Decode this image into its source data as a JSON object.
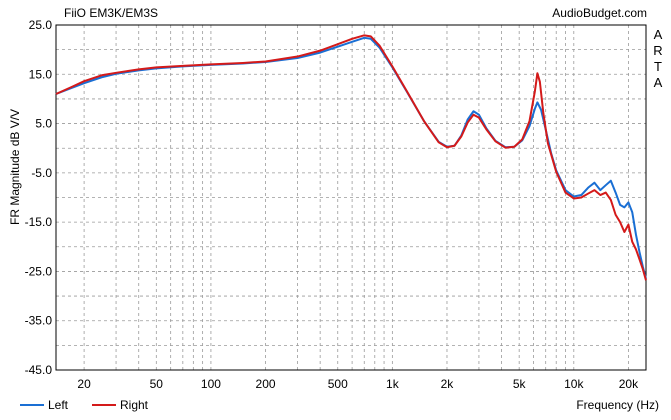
{
  "header": {
    "title": "FiiO EM3K/EM3S",
    "site": "AudioBudget.com"
  },
  "side_text": [
    "A",
    "R",
    "T",
    "A"
  ],
  "colors": {
    "left": "#1a6fd4",
    "right": "#d41a1a",
    "grid": "#9a9a9a",
    "frame": "#000000"
  },
  "chart_data": {
    "type": "line",
    "title": "FiiO EM3K/EM3S",
    "xlabel": "Frequency (Hz)",
    "ylabel": "FR Magnitude dB V/V",
    "xscale": "log",
    "xlim": [
      14,
      25000
    ],
    "ylim": [
      -45,
      25
    ],
    "grid": true,
    "legend_position": "bottom-left",
    "x_ticks": [
      {
        "value": 20,
        "label": "20"
      },
      {
        "value": 50,
        "label": "50"
      },
      {
        "value": 100,
        "label": "100"
      },
      {
        "value": 200,
        "label": "200"
      },
      {
        "value": 500,
        "label": "500"
      },
      {
        "value": 1000,
        "label": "1k"
      },
      {
        "value": 2000,
        "label": "2k"
      },
      {
        "value": 5000,
        "label": "5k"
      },
      {
        "value": 10000,
        "label": "10k"
      },
      {
        "value": 20000,
        "label": "20k"
      }
    ],
    "y_ticks": [
      {
        "value": 25,
        "label": "25.0"
      },
      {
        "value": 15,
        "label": "15.0"
      },
      {
        "value": 5,
        "label": "5.0"
      },
      {
        "value": -5,
        "label": "-5.0"
      },
      {
        "value": -15,
        "label": "-15.0"
      },
      {
        "value": -25,
        "label": "-25.0"
      },
      {
        "value": -35,
        "label": "-35.0"
      },
      {
        "value": -45,
        "label": "-45.0"
      }
    ],
    "series": [
      {
        "name": "Left",
        "color": "#1a6fd4",
        "points": [
          [
            14,
            11.0
          ],
          [
            17,
            12.2
          ],
          [
            20,
            13.2
          ],
          [
            25,
            14.4
          ],
          [
            30,
            15.1
          ],
          [
            40,
            15.8
          ],
          [
            50,
            16.2
          ],
          [
            70,
            16.6
          ],
          [
            100,
            16.9
          ],
          [
            150,
            17.2
          ],
          [
            200,
            17.5
          ],
          [
            300,
            18.3
          ],
          [
            400,
            19.4
          ],
          [
            500,
            20.6
          ],
          [
            600,
            21.6
          ],
          [
            700,
            22.4
          ],
          [
            760,
            22.2
          ],
          [
            850,
            20.4
          ],
          [
            1000,
            16.4
          ],
          [
            1200,
            11.5
          ],
          [
            1500,
            5.4
          ],
          [
            1800,
            1.3
          ],
          [
            2000,
            0.3
          ],
          [
            2200,
            0.5
          ],
          [
            2400,
            2.6
          ],
          [
            2600,
            5.8
          ],
          [
            2800,
            7.5
          ],
          [
            3000,
            6.8
          ],
          [
            3300,
            4.0
          ],
          [
            3700,
            1.5
          ],
          [
            4200,
            0.2
          ],
          [
            4700,
            0.3
          ],
          [
            5200,
            1.6
          ],
          [
            5700,
            4.5
          ],
          [
            6100,
            8.0
          ],
          [
            6300,
            9.3
          ],
          [
            6600,
            7.8
          ],
          [
            7000,
            3.8
          ],
          [
            7500,
            -1.0
          ],
          [
            8000,
            -4.5
          ],
          [
            9000,
            -8.5
          ],
          [
            10000,
            -9.8
          ],
          [
            11000,
            -9.5
          ],
          [
            12000,
            -8.0
          ],
          [
            13000,
            -7.0
          ],
          [
            14000,
            -8.5
          ],
          [
            15000,
            -7.5
          ],
          [
            16000,
            -6.6
          ],
          [
            17000,
            -9.0
          ],
          [
            18000,
            -11.5
          ],
          [
            19000,
            -12.0
          ],
          [
            20000,
            -11.0
          ],
          [
            21000,
            -13.0
          ],
          [
            22000,
            -17.5
          ],
          [
            23000,
            -21.0
          ],
          [
            24000,
            -24.0
          ],
          [
            25000,
            -26.5
          ]
        ]
      },
      {
        "name": "Right",
        "color": "#d41a1a",
        "points": [
          [
            14,
            11.0
          ],
          [
            17,
            12.4
          ],
          [
            20,
            13.6
          ],
          [
            25,
            14.8
          ],
          [
            30,
            15.3
          ],
          [
            40,
            16.0
          ],
          [
            50,
            16.4
          ],
          [
            70,
            16.7
          ],
          [
            100,
            17.0
          ],
          [
            150,
            17.3
          ],
          [
            200,
            17.6
          ],
          [
            300,
            18.6
          ],
          [
            400,
            19.8
          ],
          [
            500,
            21.1
          ],
          [
            600,
            22.2
          ],
          [
            700,
            22.9
          ],
          [
            760,
            22.7
          ],
          [
            850,
            20.8
          ],
          [
            1000,
            16.6
          ],
          [
            1200,
            11.6
          ],
          [
            1500,
            5.4
          ],
          [
            1800,
            1.2
          ],
          [
            2000,
            0.2
          ],
          [
            2200,
            0.5
          ],
          [
            2400,
            2.4
          ],
          [
            2600,
            5.2
          ],
          [
            2800,
            6.8
          ],
          [
            3000,
            6.2
          ],
          [
            3300,
            3.8
          ],
          [
            3700,
            1.4
          ],
          [
            4200,
            0.1
          ],
          [
            4700,
            0.3
          ],
          [
            5200,
            1.8
          ],
          [
            5700,
            5.5
          ],
          [
            6100,
            11.5
          ],
          [
            6300,
            15.2
          ],
          [
            6500,
            13.5
          ],
          [
            6800,
            7.0
          ],
          [
            7200,
            1.0
          ],
          [
            8000,
            -4.8
          ],
          [
            9000,
            -9.0
          ],
          [
            10000,
            -10.2
          ],
          [
            11000,
            -10.0
          ],
          [
            12000,
            -9.2
          ],
          [
            13000,
            -8.5
          ],
          [
            14000,
            -9.5
          ],
          [
            15000,
            -9.0
          ],
          [
            16000,
            -10.5
          ],
          [
            17000,
            -13.5
          ],
          [
            18000,
            -15.0
          ],
          [
            19000,
            -17.0
          ],
          [
            20000,
            -15.5
          ],
          [
            21000,
            -19.0
          ],
          [
            22000,
            -20.5
          ],
          [
            23000,
            -22.5
          ],
          [
            24000,
            -24.5
          ],
          [
            25000,
            -26.8
          ]
        ]
      }
    ]
  }
}
